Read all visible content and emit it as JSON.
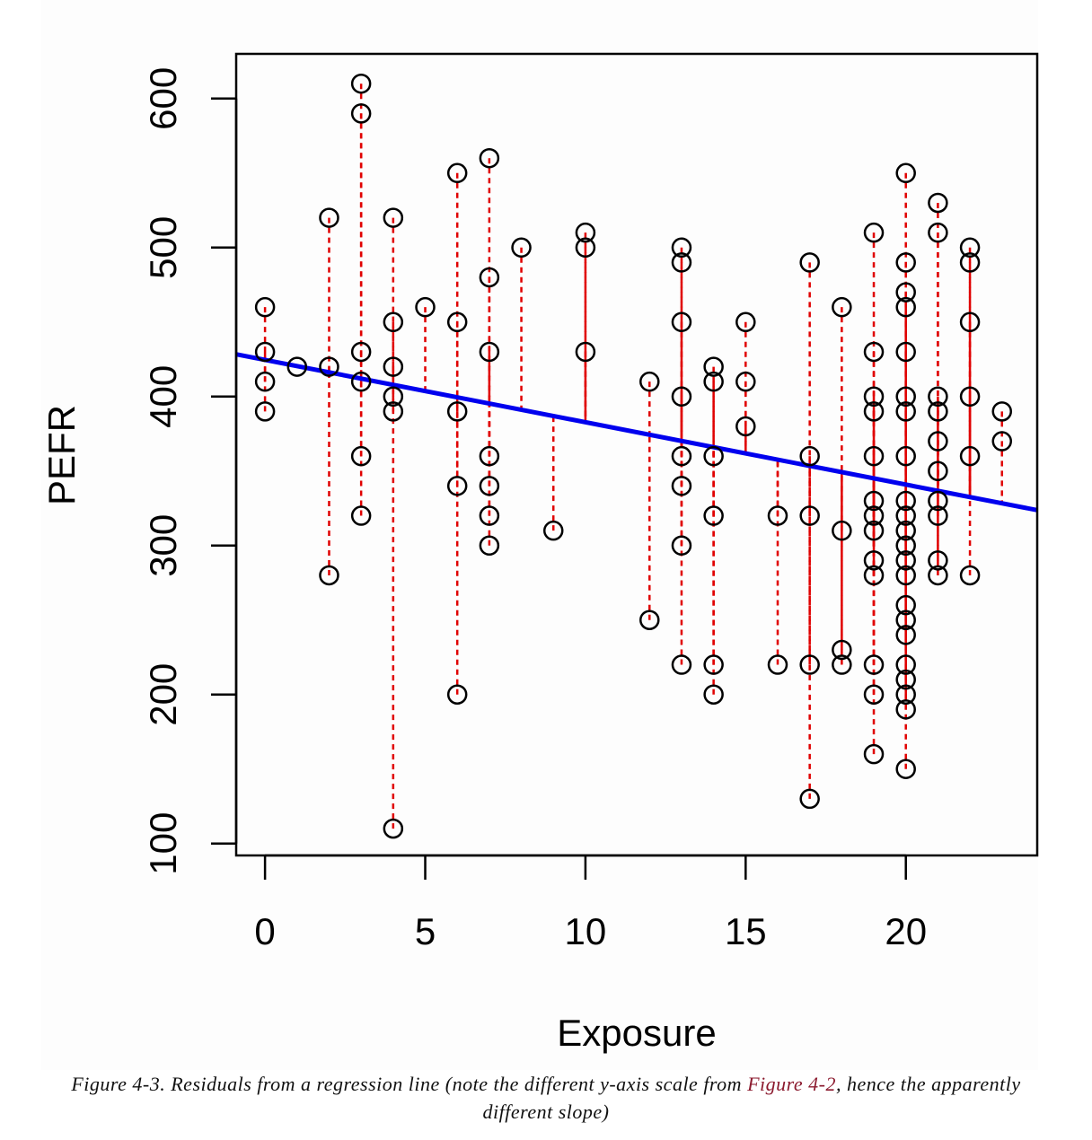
{
  "chart_data": {
    "type": "scatter",
    "xlabel": "Exposure",
    "ylabel": "PEFR",
    "xlim": [
      -0.9,
      24.1
    ],
    "ylim": [
      92,
      630
    ],
    "x_ticks": [
      0,
      5,
      10,
      15,
      20
    ],
    "y_ticks": [
      100,
      200,
      300,
      400,
      500,
      600
    ],
    "regression_line": {
      "intercept": 424.6,
      "slope": -4.185,
      "color": "#0000ee"
    },
    "residual_color": "#e00000",
    "point_color": "#000000",
    "points": [
      [
        0,
        460
      ],
      [
        0,
        430
      ],
      [
        0,
        410
      ],
      [
        0,
        390
      ],
      [
        1,
        420
      ],
      [
        2,
        520
      ],
      [
        2,
        420
      ],
      [
        2,
        280
      ],
      [
        3,
        610
      ],
      [
        3,
        590
      ],
      [
        3,
        430
      ],
      [
        3,
        410
      ],
      [
        3,
        360
      ],
      [
        3,
        320
      ],
      [
        4,
        520
      ],
      [
        4,
        450
      ],
      [
        4,
        420
      ],
      [
        4,
        400
      ],
      [
        4,
        390
      ],
      [
        4,
        110
      ],
      [
        5,
        460
      ],
      [
        6,
        550
      ],
      [
        6,
        450
      ],
      [
        6,
        390
      ],
      [
        6,
        340
      ],
      [
        6,
        200
      ],
      [
        7,
        560
      ],
      [
        7,
        480
      ],
      [
        7,
        430
      ],
      [
        7,
        360
      ],
      [
        7,
        340
      ],
      [
        7,
        320
      ],
      [
        7,
        300
      ],
      [
        8,
        500
      ],
      [
        9,
        310
      ],
      [
        10,
        510
      ],
      [
        10,
        500
      ],
      [
        10,
        430
      ],
      [
        12,
        410
      ],
      [
        12,
        250
      ],
      [
        13,
        500
      ],
      [
        13,
        490
      ],
      [
        13,
        450
      ],
      [
        13,
        400
      ],
      [
        13,
        360
      ],
      [
        13,
        340
      ],
      [
        13,
        300
      ],
      [
        13,
        220
      ],
      [
        14,
        420
      ],
      [
        14,
        410
      ],
      [
        14,
        360
      ],
      [
        14,
        320
      ],
      [
        14,
        220
      ],
      [
        14,
        200
      ],
      [
        15,
        450
      ],
      [
        15,
        410
      ],
      [
        15,
        380
      ],
      [
        16,
        320
      ],
      [
        16,
        220
      ],
      [
        17,
        490
      ],
      [
        17,
        360
      ],
      [
        17,
        320
      ],
      [
        17,
        220
      ],
      [
        17,
        130
      ],
      [
        18,
        460
      ],
      [
        18,
        310
      ],
      [
        18,
        230
      ],
      [
        18,
        220
      ],
      [
        19,
        510
      ],
      [
        19,
        430
      ],
      [
        19,
        400
      ],
      [
        19,
        390
      ],
      [
        19,
        360
      ],
      [
        19,
        330
      ],
      [
        19,
        320
      ],
      [
        19,
        310
      ],
      [
        19,
        290
      ],
      [
        19,
        280
      ],
      [
        19,
        220
      ],
      [
        19,
        200
      ],
      [
        19,
        160
      ],
      [
        20,
        550
      ],
      [
        20,
        490
      ],
      [
        20,
        470
      ],
      [
        20,
        460
      ],
      [
        20,
        430
      ],
      [
        20,
        400
      ],
      [
        20,
        390
      ],
      [
        20,
        360
      ],
      [
        20,
        330
      ],
      [
        20,
        320
      ],
      [
        20,
        310
      ],
      [
        20,
        300
      ],
      [
        20,
        290
      ],
      [
        20,
        280
      ],
      [
        20,
        260
      ],
      [
        20,
        250
      ],
      [
        20,
        240
      ],
      [
        20,
        220
      ],
      [
        20,
        210
      ],
      [
        20,
        200
      ],
      [
        20,
        190
      ],
      [
        20,
        150
      ],
      [
        21,
        530
      ],
      [
        21,
        510
      ],
      [
        21,
        400
      ],
      [
        21,
        390
      ],
      [
        21,
        370
      ],
      [
        21,
        350
      ],
      [
        21,
        330
      ],
      [
        21,
        320
      ],
      [
        21,
        290
      ],
      [
        21,
        280
      ],
      [
        22,
        500
      ],
      [
        22,
        490
      ],
      [
        22,
        450
      ],
      [
        22,
        400
      ],
      [
        22,
        360
      ],
      [
        22,
        280
      ],
      [
        23,
        390
      ],
      [
        23,
        370
      ]
    ]
  },
  "caption": {
    "prefix": "Figure 4-3. Residuals from a regression line (note the different y-axis scale from ",
    "link": "Figure 4-2",
    "suffix": ", hence the apparently different slope)"
  }
}
